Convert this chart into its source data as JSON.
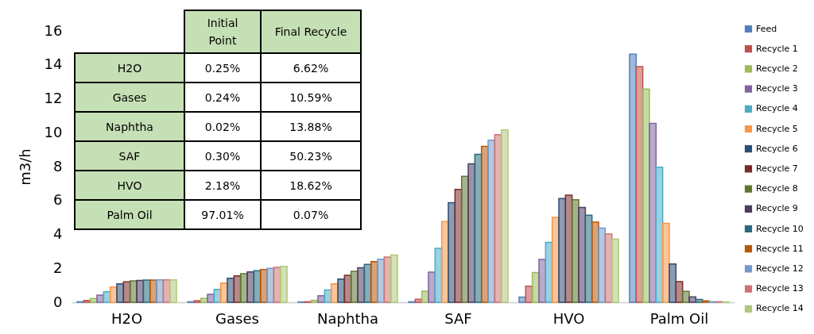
{
  "chart_data": [
    {
      "type": "bar",
      "ylabel": "m3/h",
      "categories": [
        "H2O",
        "Gases",
        "Naphtha",
        "SAF",
        "HVO",
        "Palm Oil"
      ],
      "ylim": [
        0,
        16
      ],
      "yticks": [
        0,
        2,
        4,
        6,
        8,
        10,
        12,
        14,
        16
      ],
      "grid": false,
      "legend": "right",
      "series": [
        {
          "name": "Feed",
          "color": "#4f81bd",
          "values": [
            0.03,
            0.03,
            0.02,
            0.03,
            0.3,
            14.63
          ]
        },
        {
          "name": "Recycle 1",
          "color": "#c0504d",
          "values": [
            0.11,
            0.09,
            0.03,
            0.17,
            0.95,
            13.9
          ]
        },
        {
          "name": "Recycle 2",
          "color": "#9bbb59",
          "values": [
            0.22,
            0.23,
            0.12,
            0.66,
            1.75,
            12.57
          ]
        },
        {
          "name": "Recycle 3",
          "color": "#8064a2",
          "values": [
            0.42,
            0.47,
            0.39,
            1.78,
            2.53,
            10.55
          ]
        },
        {
          "name": "Recycle 4",
          "color": "#4bacc6",
          "values": [
            0.62,
            0.76,
            0.72,
            3.18,
            3.53,
            7.97
          ]
        },
        {
          "name": "Recycle 5",
          "color": "#f79646",
          "values": [
            0.9,
            1.14,
            1.09,
            4.76,
            5.01,
            4.66
          ]
        },
        {
          "name": "Recycle 6",
          "color": "#2c4d75",
          "values": [
            1.09,
            1.42,
            1.37,
            5.87,
            6.12,
            2.26
          ]
        },
        {
          "name": "Recycle 7",
          "color": "#772c2a",
          "values": [
            1.2,
            1.56,
            1.59,
            6.65,
            6.32,
            1.22
          ]
        },
        {
          "name": "Recycle 8",
          "color": "#5f7530",
          "values": [
            1.26,
            1.68,
            1.82,
            7.43,
            6.05,
            0.64
          ]
        },
        {
          "name": "Recycle 9",
          "color": "#4d3b62",
          "values": [
            1.29,
            1.79,
            2.04,
            8.16,
            5.59,
            0.31
          ]
        },
        {
          "name": "Recycle 10",
          "color": "#276a7c",
          "values": [
            1.31,
            1.86,
            2.23,
            8.72,
            5.13,
            0.16
          ]
        },
        {
          "name": "Recycle 11",
          "color": "#b65708",
          "values": [
            1.31,
            1.93,
            2.4,
            9.19,
            4.73,
            0.08
          ]
        },
        {
          "name": "Recycle 12",
          "color": "#729aca",
          "values": [
            1.32,
            2.0,
            2.54,
            9.55,
            4.37,
            0.03
          ]
        },
        {
          "name": "Recycle 13",
          "color": "#cd7371",
          "values": [
            1.32,
            2.06,
            2.67,
            9.88,
            4.02,
            0.03
          ]
        },
        {
          "name": "Recycle 14",
          "color": "#afc97a",
          "values": [
            1.32,
            2.12,
            2.78,
            10.16,
            3.73,
            0.02
          ]
        }
      ]
    },
    {
      "type": "other",
      "categories": [
        "Initial Point",
        "Final Recycle"
      ],
      "y_categories": [
        "H2O",
        "Gases",
        "Naphtha",
        "SAF",
        "HVO",
        "Palm Oil"
      ],
      "cell_labels": [
        [
          "0.25%",
          "6.62%"
        ],
        [
          "0.24%",
          "10.59%"
        ],
        [
          "0.02%",
          "13.88%"
        ],
        [
          "0.30%",
          "50.23%"
        ],
        [
          "2.18%",
          "18.62%"
        ],
        [
          "97.01%",
          "0.07%"
        ]
      ]
    }
  ]
}
